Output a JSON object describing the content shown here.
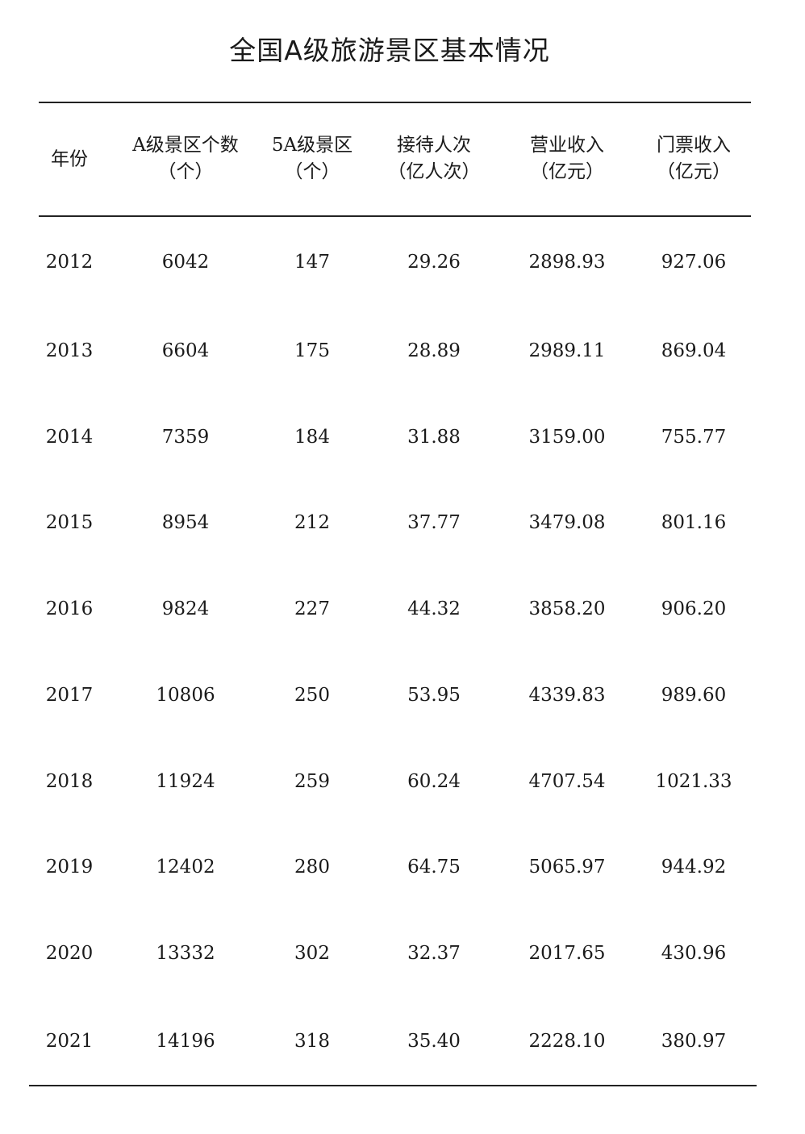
{
  "title": "全国A级旅游景区基本情况",
  "chart_data": {
    "type": "table",
    "title": "全国A级旅游景区基本情况",
    "columns": [
      {
        "label": "年份",
        "unit": ""
      },
      {
        "label": "A级景区个数",
        "unit": "（个）"
      },
      {
        "label": "5A级景区",
        "unit": "（个）"
      },
      {
        "label": "接待人次",
        "unit": "（亿人次）"
      },
      {
        "label": "营业收入",
        "unit": "（亿元）"
      },
      {
        "label": "门票收入",
        "unit": "（亿元）"
      }
    ],
    "rows": [
      [
        "2012",
        "6042",
        "147",
        "29.26",
        "2898.93",
        "927.06"
      ],
      [
        "2013",
        "6604",
        "175",
        "28.89",
        "2989.11",
        "869.04"
      ],
      [
        "2014",
        "7359",
        "184",
        "31.88",
        "3159.00",
        "755.77"
      ],
      [
        "2015",
        "8954",
        "212",
        "37.77",
        "3479.08",
        "801.16"
      ],
      [
        "2016",
        "9824",
        "227",
        "44.32",
        "3858.20",
        "906.20"
      ],
      [
        "2017",
        "10806",
        "250",
        "53.95",
        "4339.83",
        "989.60"
      ],
      [
        "2018",
        "11924",
        "259",
        "60.24",
        "4707.54",
        "1021.33"
      ],
      [
        "2019",
        "12402",
        "280",
        "64.75",
        "5065.97",
        "944.92"
      ],
      [
        "2020",
        "13332",
        "302",
        "32.37",
        "2017.65",
        "430.96"
      ],
      [
        "2021",
        "14196",
        "318",
        "35.40",
        "2228.10",
        "380.97"
      ]
    ]
  }
}
